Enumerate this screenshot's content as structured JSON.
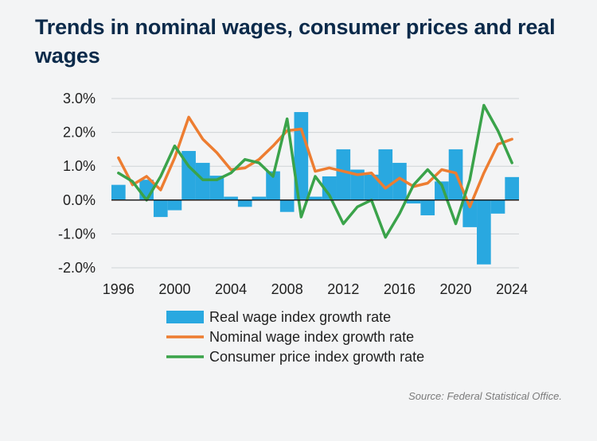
{
  "title": "Trends in nominal wages, consumer prices and real wages",
  "source": "Source: Federal Statistical Office.",
  "colors": {
    "real": "#29a8e0",
    "nominal": "#ed7d31",
    "cpi": "#3aa34a",
    "grid": "#cfd3d6",
    "axis": "#1f1f1f"
  },
  "chart_data": {
    "type": "bar",
    "x": [
      1996,
      1997,
      1998,
      1999,
      2000,
      2001,
      2002,
      2003,
      2004,
      2005,
      2006,
      2007,
      2008,
      2009,
      2010,
      2011,
      2012,
      2013,
      2014,
      2015,
      2016,
      2017,
      2018,
      2019,
      2020,
      2021,
      2022,
      2023,
      2024
    ],
    "ylim": [
      -2.0,
      3.0
    ],
    "ytick_values": [
      3.0,
      2.0,
      1.0,
      0.0,
      -1.0,
      -2.0
    ],
    "ytick_labels": [
      "3.0%",
      "2.0%",
      "1.0%",
      "0.0%",
      "-1.0%",
      "-2.0%"
    ],
    "xtick_values": [
      1996,
      2000,
      2004,
      2008,
      2012,
      2016,
      2020,
      2024
    ],
    "xtick_labels": [
      "1996",
      "2000",
      "2004",
      "2008",
      "2012",
      "2016",
      "2020",
      "2024"
    ],
    "grid": true,
    "legend_position": "bottom",
    "series": [
      {
        "name": "Real wage index growth rate",
        "type": "bar",
        "values": [
          0.45,
          0.0,
          0.6,
          -0.5,
          -0.3,
          1.45,
          1.1,
          0.72,
          0.1,
          -0.2,
          0.1,
          0.85,
          -0.35,
          2.6,
          0.1,
          0.7,
          1.5,
          0.9,
          0.75,
          1.5,
          1.1,
          -0.1,
          -0.45,
          0.55,
          1.5,
          -0.8,
          -1.9,
          -0.4,
          0.68
        ]
      },
      {
        "name": "Nominal wage index growth rate",
        "type": "line",
        "values": [
          1.25,
          0.45,
          0.7,
          0.3,
          1.25,
          2.45,
          1.8,
          1.4,
          0.9,
          0.95,
          1.2,
          1.6,
          2.05,
          2.1,
          0.85,
          0.95,
          0.85,
          0.75,
          0.8,
          0.35,
          0.65,
          0.4,
          0.5,
          0.9,
          0.8,
          -0.2,
          0.8,
          1.65,
          1.8
        ]
      },
      {
        "name": "Consumer price index growth rate",
        "type": "line",
        "values": [
          0.8,
          0.55,
          0.0,
          0.7,
          1.6,
          1.0,
          0.6,
          0.6,
          0.8,
          1.2,
          1.1,
          0.7,
          2.4,
          -0.5,
          0.7,
          0.15,
          -0.7,
          -0.2,
          0.0,
          -1.1,
          -0.4,
          0.45,
          0.9,
          0.45,
          -0.7,
          0.6,
          2.8,
          2.05,
          1.1
        ]
      }
    ]
  }
}
